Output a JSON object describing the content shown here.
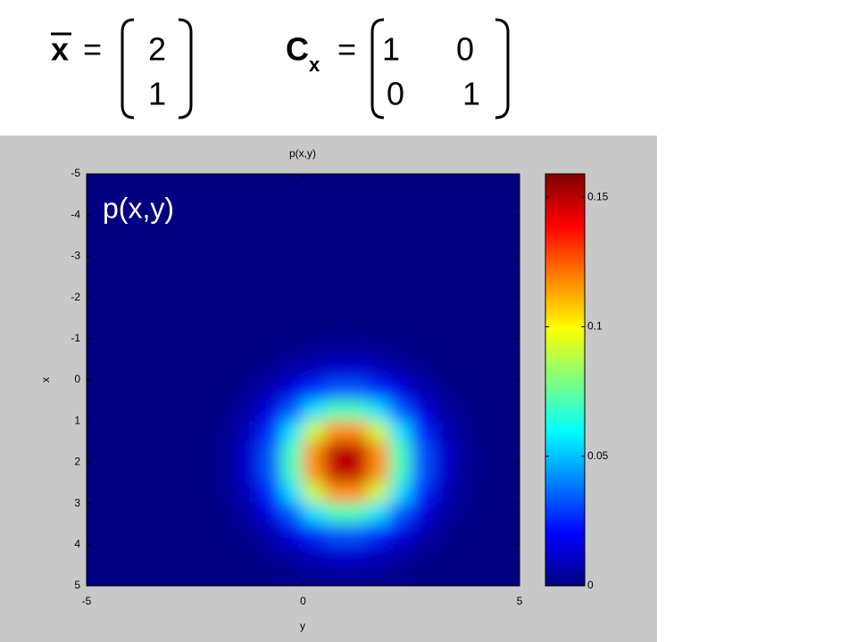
{
  "header": {
    "mean_symbol": "x",
    "equals": "=",
    "mean": [
      2,
      1
    ],
    "cov_symbol": "C",
    "cov_subscript": "x",
    "cov": [
      [
        1,
        0
      ],
      [
        0,
        1
      ]
    ]
  },
  "chart_data": {
    "type": "heatmap",
    "title": "p(x,y)",
    "annotation": "p(x,y)",
    "xlabel": "y",
    "ylabel": "x",
    "xbins": [
      -5,
      -4.5,
      -4,
      -3.5,
      -3,
      -2.5,
      -2,
      -1.5,
      -1,
      -0.5,
      0,
      0.5,
      1,
      1.5,
      2,
      2.5,
      3,
      3.5,
      4,
      4.5,
      5
    ],
    "ybins": [
      -5,
      -4.5,
      -4,
      -3.5,
      -3,
      -2.5,
      -2,
      -1.5,
      -1,
      -0.5,
      0,
      0.5,
      1,
      1.5,
      2,
      2.5,
      3,
      3.5,
      4,
      4.5,
      5
    ],
    "z": [
      [
        0,
        0,
        0,
        0,
        0,
        0,
        0,
        0,
        0,
        0,
        0,
        0,
        0,
        0,
        0,
        0,
        0,
        0,
        0,
        0
      ],
      [
        0,
        0,
        0,
        0,
        0,
        0,
        0,
        0,
        0,
        0,
        0,
        0,
        0,
        0,
        0,
        0,
        0,
        0,
        0,
        0
      ],
      [
        0,
        0,
        0,
        0,
        0,
        0,
        0,
        0,
        0,
        0,
        0,
        0,
        0,
        0,
        0,
        0,
        0,
        0,
        0,
        0
      ],
      [
        0,
        0,
        0,
        0,
        0,
        0,
        0,
        0,
        0,
        0,
        0,
        0,
        0,
        0,
        0,
        0,
        0,
        0,
        0,
        0
      ],
      [
        0,
        0,
        0,
        0,
        0,
        0,
        0,
        0,
        0,
        0,
        0,
        0,
        0,
        0,
        0,
        0,
        0,
        0,
        0,
        0
      ],
      [
        0,
        0,
        0,
        0,
        0,
        0,
        0,
        0,
        0,
        0,
        0,
        0,
        0,
        0,
        0,
        0,
        0,
        0,
        0,
        0
      ],
      [
        0,
        0,
        0,
        0,
        0,
        0,
        0,
        0,
        0,
        0.0001,
        0.0001,
        0.0001,
        0.0001,
        0.0001,
        0.0001,
        0,
        0,
        0,
        0,
        0
      ],
      [
        0,
        0,
        0,
        0,
        0,
        0,
        0,
        0.0001,
        0.0002,
        0.0004,
        0.0006,
        0.0008,
        0.0008,
        0.0006,
        0.0004,
        0.0002,
        0.0001,
        0,
        0,
        0
      ],
      [
        0,
        0,
        0,
        0,
        0,
        0,
        0.0001,
        0.0003,
        0.0008,
        0.0017,
        0.0027,
        0.0035,
        0.0035,
        0.0027,
        0.0017,
        0.0008,
        0.0003,
        0.0001,
        0,
        0
      ],
      [
        0,
        0,
        0,
        0,
        0,
        0.0001,
        0.0003,
        0.001,
        0.0027,
        0.0058,
        0.0095,
        0.0123,
        0.0123,
        0.0095,
        0.0058,
        0.0027,
        0.001,
        0.0003,
        0.0001,
        0
      ],
      [
        0,
        0,
        0,
        0,
        0,
        0.0002,
        0.0008,
        0.0027,
        0.0074,
        0.0158,
        0.026,
        0.0334,
        0.0334,
        0.026,
        0.0158,
        0.0074,
        0.0027,
        0.0008,
        0.0002,
        0
      ],
      [
        0,
        0,
        0,
        0,
        0.0001,
        0.0004,
        0.0017,
        0.0058,
        0.0158,
        0.0333,
        0.055,
        0.0706,
        0.0706,
        0.055,
        0.0333,
        0.0158,
        0.0058,
        0.0017,
        0.0004,
        0.0001
      ],
      [
        0,
        0,
        0,
        0,
        0.0001,
        0.0006,
        0.0027,
        0.0095,
        0.026,
        0.055,
        0.0907,
        0.1164,
        0.1164,
        0.0907,
        0.055,
        0.026,
        0.0095,
        0.0027,
        0.0006,
        0.0001
      ],
      [
        0,
        0,
        0,
        0,
        0.0001,
        0.0008,
        0.0035,
        0.0123,
        0.0334,
        0.0706,
        0.1164,
        0.1495,
        0.1495,
        0.1164,
        0.0706,
        0.0334,
        0.0123,
        0.0035,
        0.0008,
        0.0001
      ],
      [
        0,
        0,
        0,
        0,
        0.0001,
        0.0008,
        0.0035,
        0.0123,
        0.0334,
        0.0706,
        0.1164,
        0.1495,
        0.1495,
        0.1164,
        0.0706,
        0.0334,
        0.0123,
        0.0035,
        0.0008,
        0.0001
      ],
      [
        0,
        0,
        0,
        0,
        0.0001,
        0.0006,
        0.0027,
        0.0095,
        0.026,
        0.055,
        0.0907,
        0.1164,
        0.1164,
        0.0907,
        0.055,
        0.026,
        0.0095,
        0.0027,
        0.0006,
        0.0001
      ],
      [
        0,
        0,
        0,
        0,
        0.0001,
        0.0004,
        0.0017,
        0.0058,
        0.0158,
        0.0333,
        0.055,
        0.0706,
        0.0706,
        0.055,
        0.0333,
        0.0158,
        0.0058,
        0.0017,
        0.0004,
        0.0001
      ],
      [
        0,
        0,
        0,
        0,
        0,
        0.0002,
        0.0008,
        0.0027,
        0.0074,
        0.0158,
        0.026,
        0.0334,
        0.0334,
        0.026,
        0.0158,
        0.0074,
        0.0027,
        0.0008,
        0.0002,
        0
      ],
      [
        0,
        0,
        0,
        0,
        0,
        0.0001,
        0.0003,
        0.001,
        0.0027,
        0.0058,
        0.0095,
        0.0123,
        0.0123,
        0.0095,
        0.0058,
        0.0027,
        0.001,
        0.0003,
        0.0001,
        0
      ],
      [
        0,
        0,
        0,
        0,
        0,
        0,
        0.0001,
        0.0003,
        0.0008,
        0.0017,
        0.0027,
        0.0035,
        0.0035,
        0.0027,
        0.0017,
        0.0008,
        0.0003,
        0.0001,
        0,
        0
      ]
    ],
    "xlim": [
      -5,
      5
    ],
    "xticks": [
      -5,
      0,
      5
    ],
    "ylim": [
      -5,
      5
    ],
    "yticks": [
      -5,
      -4,
      -3,
      -2,
      -1,
      0,
      1,
      2,
      3,
      4,
      5
    ],
    "y_reversed": true,
    "colormap": "jet",
    "clim": [
      0,
      0.159
    ],
    "colorbar_ticks": [
      0,
      0.05,
      0.1,
      0.15
    ],
    "background": "#c8c8c8"
  }
}
